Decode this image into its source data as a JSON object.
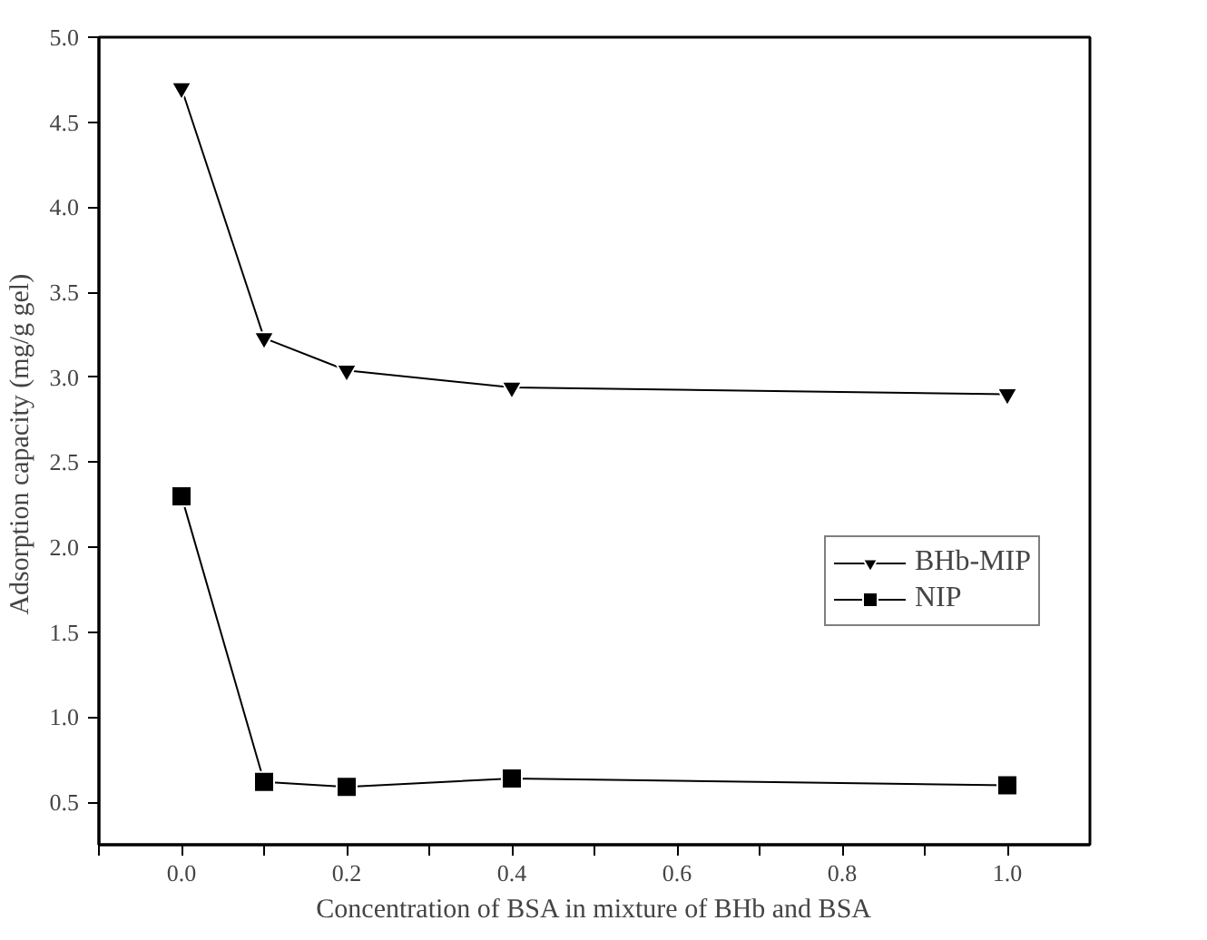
{
  "chart_data": {
    "type": "line",
    "xlabel": "Concentration of BSA in mixture of BHb and BSA",
    "ylabel": "Adsorption capacity  (mg/g gel)",
    "x": [
      0.0,
      0.1,
      0.2,
      0.4,
      1.0
    ],
    "series": [
      {
        "name": "BHb-MIP",
        "color": "#000000",
        "marker": "triangle",
        "values": [
          4.7,
          3.23,
          3.04,
          2.94,
          2.9
        ]
      },
      {
        "name": "NIP",
        "color": "#000000",
        "marker": "square",
        "values": [
          2.3,
          0.62,
          0.59,
          0.64,
          0.6
        ]
      }
    ],
    "xlim": [
      -0.1,
      1.1
    ],
    "ylim": [
      0.25,
      5.0
    ],
    "xticks": [
      {
        "value": -0.1,
        "label": null
      },
      {
        "value": 0.0,
        "label": "0.0"
      },
      {
        "value": 0.1,
        "label": null
      },
      0.2,
      {
        "value": 0.3,
        "label": null
      },
      0.4,
      {
        "value": 0.5,
        "label": null
      },
      0.6,
      {
        "value": 0.7,
        "label": null
      },
      0.8,
      {
        "value": 0.9,
        "label": null
      },
      {
        "value": 1.0,
        "label": "1.0"
      }
    ],
    "yticks": [
      0.5,
      {
        "value": 1.0,
        "label": "1.0"
      },
      1.5,
      {
        "value": 2.0,
        "label": "2.0"
      },
      2.5,
      {
        "value": 3.0,
        "label": "3.0"
      },
      3.5,
      {
        "value": 4.0,
        "label": "4.0"
      },
      4.5,
      {
        "value": 5.0,
        "label": "5.0"
      }
    ],
    "grid": false,
    "legend": "right",
    "line_style": "solid"
  }
}
